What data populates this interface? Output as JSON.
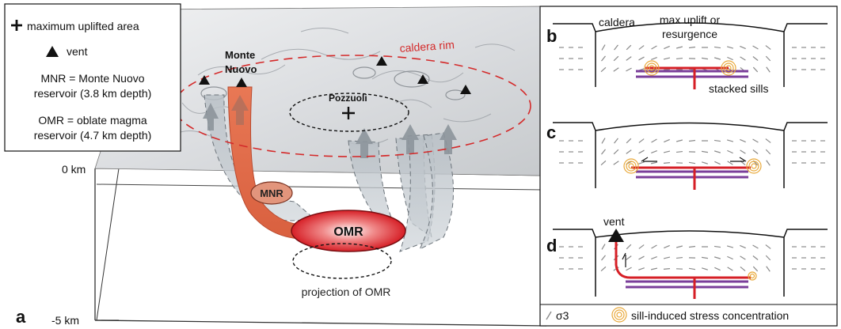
{
  "legend": {
    "max_uplift": "maximum uplifted area",
    "vent": "vent",
    "mnr_line1": "MNR = Monte Nuovo",
    "mnr_line2": "reservoir (3.8 km depth)",
    "omr_line1": "OMR = oblate magma",
    "omr_line2": "reservoir (4.7 km depth)"
  },
  "panel_a": {
    "label": "a",
    "depth_top": "0 km",
    "depth_bottom": "-5 km",
    "monte_nuovo_line1": "Monte",
    "monte_nuovo_line2": "Nuovo",
    "pozzuoli": "Pozzuoli",
    "caldera_rim": "caldera rim",
    "mnr": "MNR",
    "omr": "OMR",
    "projection": "projection of OMR"
  },
  "panel_b": {
    "label": "b",
    "caldera": "caldera",
    "max_uplift_line1": "max uplift or",
    "max_uplift_line2": "resurgence",
    "stacked_sills": "stacked sills"
  },
  "panel_c": {
    "label": "c"
  },
  "panel_d": {
    "label": "d",
    "vent": "vent"
  },
  "key": {
    "sigma3": "σ3",
    "stress_concentration": "sill-induced stress concentration"
  },
  "colors": {
    "caldera_rim": "#d42a2a",
    "magma": "#d61f26",
    "sill": "#7a3e9a",
    "stress_ring": "#e9a93a",
    "pathway_grey": "#9aa3ab"
  }
}
